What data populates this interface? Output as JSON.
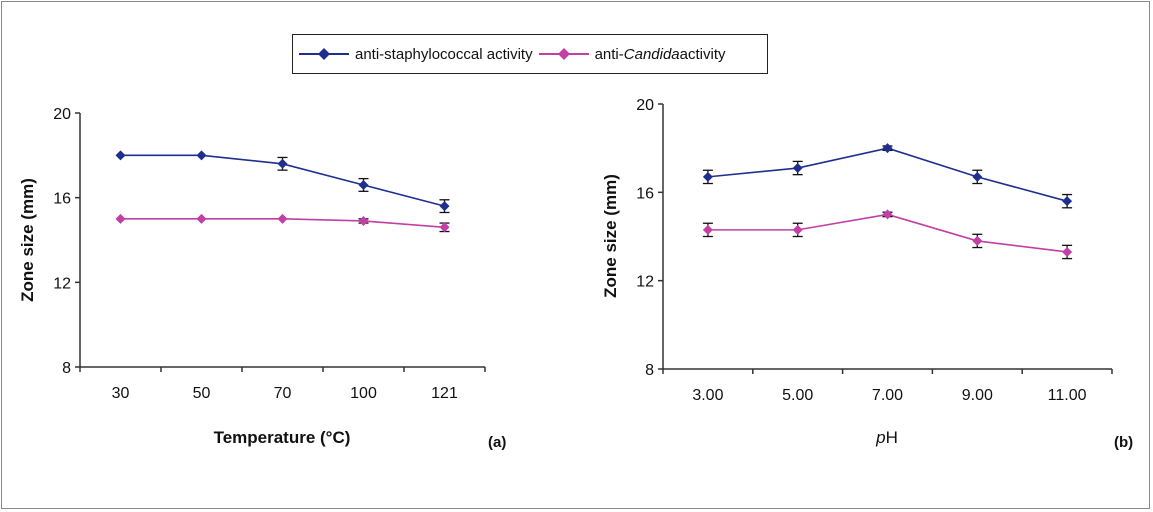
{
  "colors": {
    "staph": "#1f2f8f",
    "candida": "#c23fa5",
    "axis": "#333333",
    "errbar": "#111111"
  },
  "legend": {
    "staph_label": "anti-staphylococcal activity",
    "candida_prefix": "anti-",
    "candida_italic": "Candida",
    "candida_suffix": " activity"
  },
  "chart_data": [
    {
      "type": "line",
      "panel_label": "(a)",
      "xlabel": "Temperature (°C)",
      "ylabel": "Zone size (mm)",
      "categories": [
        "30",
        "50",
        "70",
        "100",
        "121"
      ],
      "yticks": [
        "8",
        "12",
        "16",
        "20"
      ],
      "ylim": [
        8,
        20
      ],
      "series": [
        {
          "name": "anti-staphylococcal activity",
          "values": [
            18,
            18,
            17.6,
            16.6,
            15.6
          ],
          "errors": [
            0,
            0,
            0.3,
            0.3,
            0.3
          ]
        },
        {
          "name": "anti-Candida activity",
          "values": [
            15,
            15,
            15,
            14.9,
            14.6
          ],
          "errors": [
            0,
            0,
            0,
            0.1,
            0.2
          ]
        }
      ]
    },
    {
      "type": "line",
      "panel_label": "(b)",
      "xlabel_italic": "p",
      "xlabel_rest": "H",
      "ylabel": "Zone size (mm)",
      "categories": [
        "3.00",
        "5.00",
        "7.00",
        "9.00",
        "11.00"
      ],
      "yticks": [
        "8",
        "12",
        "16",
        "20"
      ],
      "ylim": [
        8,
        20
      ],
      "series": [
        {
          "name": "anti-staphylococcal activity",
          "values": [
            16.7,
            17.1,
            18,
            16.7,
            15.6
          ],
          "errors": [
            0.3,
            0.3,
            0.1,
            0.3,
            0.3
          ]
        },
        {
          "name": "anti-Candida activity",
          "values": [
            14.3,
            14.3,
            15,
            13.8,
            13.3
          ],
          "errors": [
            0.3,
            0.3,
            0.1,
            0.3,
            0.3
          ]
        }
      ]
    }
  ]
}
